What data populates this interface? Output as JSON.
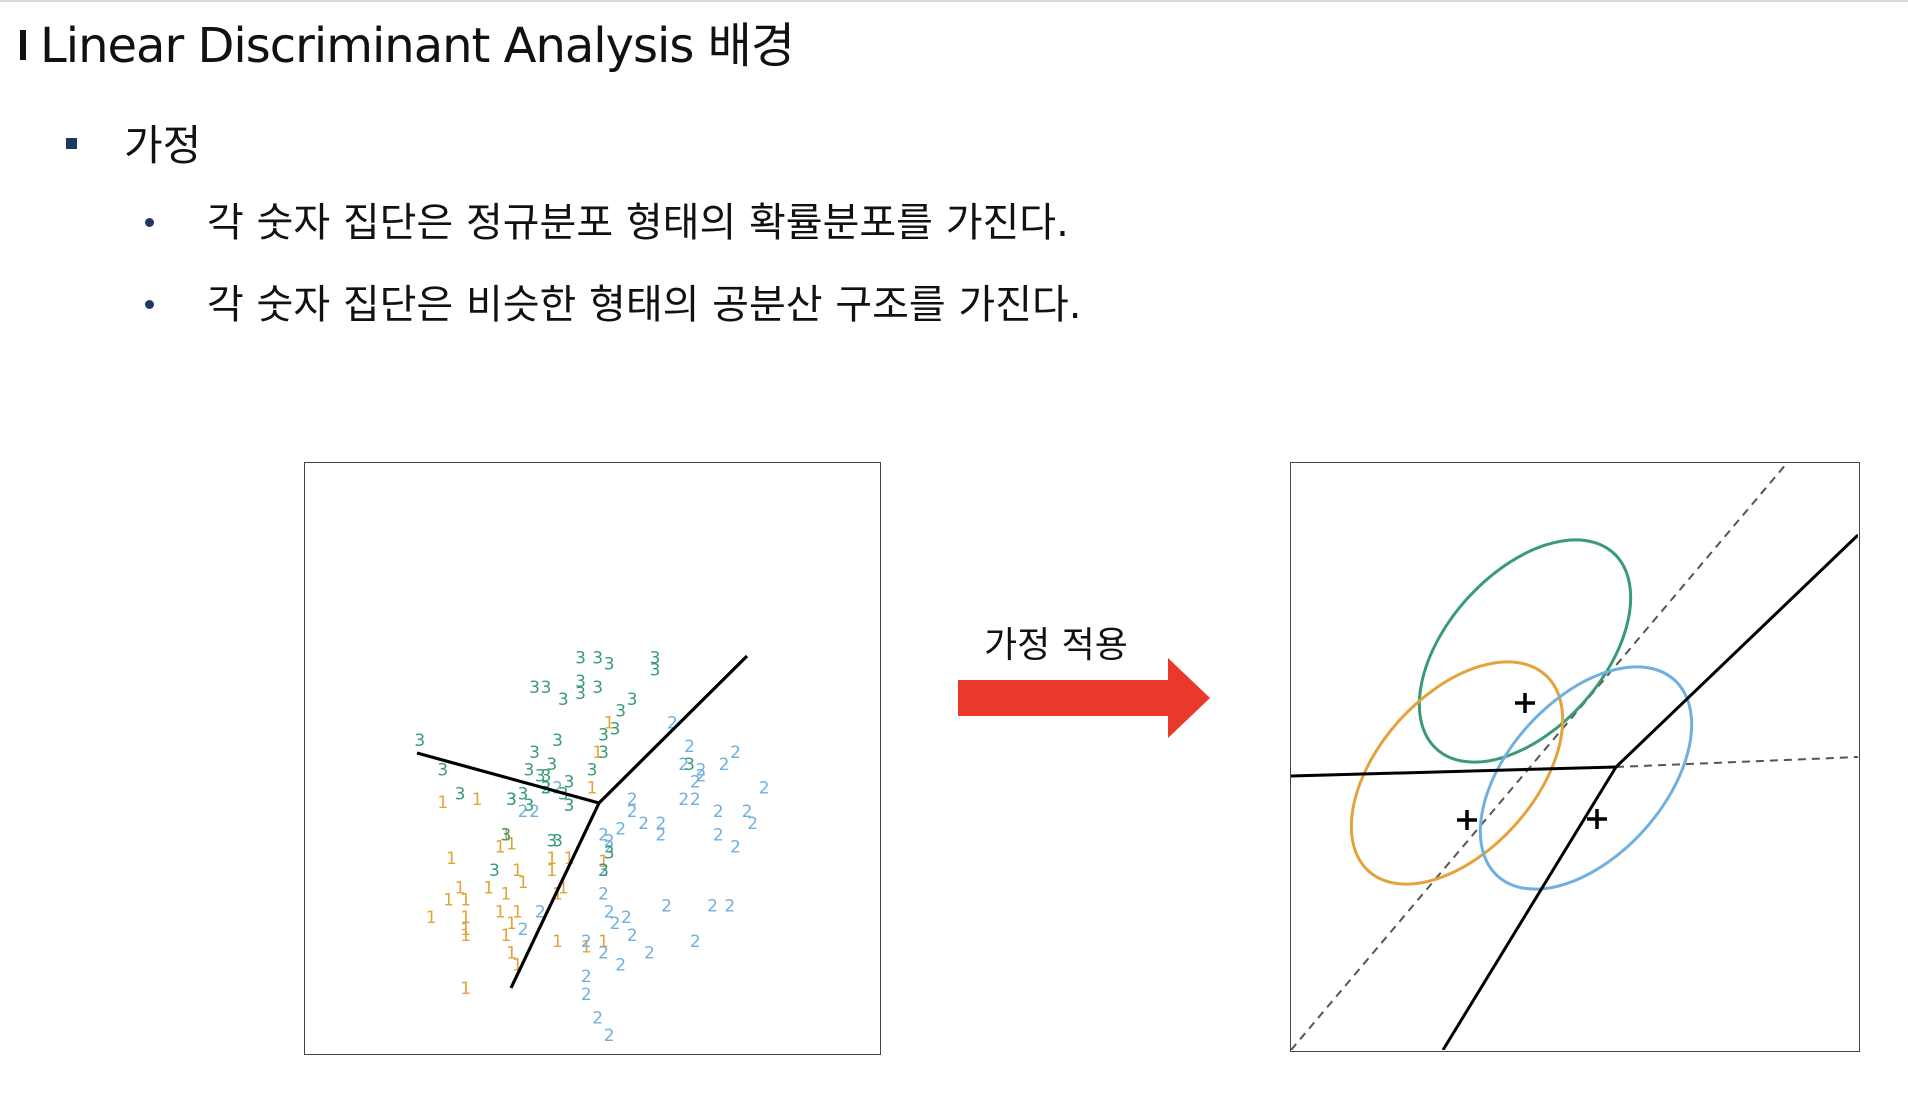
{
  "title": "Linear Discriminant Analysis 배경",
  "section": {
    "heading": "가정",
    "items": [
      "각 숫자 집단은 정규분포 형태의 확률분포를 가진다.",
      "각 숫자 집단은 비슷한 형태의 공분산 구조를 가진다."
    ]
  },
  "arrow": {
    "label": "가정 적용",
    "color": "#e8392b"
  },
  "left_figure": {
    "description_label_colors": {
      "1": "#e3a33a",
      "2": "#6fb0e0",
      "3": "#3a9b72"
    },
    "boundary_color": "#000000",
    "points": [
      {
        "c": "1",
        "x": 0.24,
        "y": 0.585
      },
      {
        "c": "1",
        "x": 0.3,
        "y": 0.58
      },
      {
        "c": "1",
        "x": 0.255,
        "y": 0.68
      },
      {
        "c": "1",
        "x": 0.34,
        "y": 0.66
      },
      {
        "c": "1",
        "x": 0.35,
        "y": 0.64
      },
      {
        "c": "1",
        "x": 0.36,
        "y": 0.655
      },
      {
        "c": "1",
        "x": 0.43,
        "y": 0.68
      },
      {
        "c": "1",
        "x": 0.46,
        "y": 0.68
      },
      {
        "c": "1",
        "x": 0.52,
        "y": 0.685
      },
      {
        "c": "1",
        "x": 0.43,
        "y": 0.7
      },
      {
        "c": "1",
        "x": 0.37,
        "y": 0.7
      },
      {
        "c": "1",
        "x": 0.38,
        "y": 0.72
      },
      {
        "c": "1",
        "x": 0.32,
        "y": 0.73
      },
      {
        "c": "1",
        "x": 0.35,
        "y": 0.74
      },
      {
        "c": "1",
        "x": 0.27,
        "y": 0.73
      },
      {
        "c": "1",
        "x": 0.25,
        "y": 0.75
      },
      {
        "c": "1",
        "x": 0.22,
        "y": 0.78
      },
      {
        "c": "1",
        "x": 0.34,
        "y": 0.77
      },
      {
        "c": "1",
        "x": 0.37,
        "y": 0.77
      },
      {
        "c": "1",
        "x": 0.36,
        "y": 0.79
      },
      {
        "c": "1",
        "x": 0.35,
        "y": 0.81
      },
      {
        "c": "1",
        "x": 0.36,
        "y": 0.84
      },
      {
        "c": "1",
        "x": 0.37,
        "y": 0.86
      },
      {
        "c": "1",
        "x": 0.45,
        "y": 0.73
      },
      {
        "c": "1",
        "x": 0.44,
        "y": 0.74
      },
      {
        "c": "1",
        "x": 0.44,
        "y": 0.82
      },
      {
        "c": "1",
        "x": 0.49,
        "y": 0.83
      },
      {
        "c": "1",
        "x": 0.28,
        "y": 0.8
      },
      {
        "c": "1",
        "x": 0.28,
        "y": 0.78
      },
      {
        "c": "1",
        "x": 0.53,
        "y": 0.45
      },
      {
        "c": "1",
        "x": 0.51,
        "y": 0.5
      },
      {
        "c": "1",
        "x": 0.5,
        "y": 0.56
      },
      {
        "c": "1",
        "x": 0.28,
        "y": 0.81
      },
      {
        "c": "1",
        "x": 0.28,
        "y": 0.75
      },
      {
        "c": "1",
        "x": 0.52,
        "y": 0.82
      },
      {
        "c": "1",
        "x": 0.28,
        "y": 0.9
      },
      {
        "c": "2",
        "x": 0.53,
        "y": 0.66
      },
      {
        "c": "2",
        "x": 0.57,
        "y": 0.58
      },
      {
        "c": "2",
        "x": 0.64,
        "y": 0.45
      },
      {
        "c": "2",
        "x": 0.67,
        "y": 0.49
      },
      {
        "c": "2",
        "x": 0.75,
        "y": 0.5
      },
      {
        "c": "2",
        "x": 0.73,
        "y": 0.52
      },
      {
        "c": "2",
        "x": 0.69,
        "y": 0.53
      },
      {
        "c": "2",
        "x": 0.69,
        "y": 0.54
      },
      {
        "c": "2",
        "x": 0.68,
        "y": 0.55
      },
      {
        "c": "2",
        "x": 0.66,
        "y": 0.58
      },
      {
        "c": "2",
        "x": 0.68,
        "y": 0.58
      },
      {
        "c": "2",
        "x": 0.72,
        "y": 0.6
      },
      {
        "c": "2",
        "x": 0.8,
        "y": 0.56
      },
      {
        "c": "2",
        "x": 0.77,
        "y": 0.6
      },
      {
        "c": "2",
        "x": 0.78,
        "y": 0.62
      },
      {
        "c": "2",
        "x": 0.72,
        "y": 0.64
      },
      {
        "c": "2",
        "x": 0.75,
        "y": 0.66
      },
      {
        "c": "2",
        "x": 0.57,
        "y": 0.6
      },
      {
        "c": "2",
        "x": 0.59,
        "y": 0.62
      },
      {
        "c": "2",
        "x": 0.62,
        "y": 0.62
      },
      {
        "c": "2",
        "x": 0.62,
        "y": 0.64
      },
      {
        "c": "2",
        "x": 0.55,
        "y": 0.63
      },
      {
        "c": "2",
        "x": 0.52,
        "y": 0.64
      },
      {
        "c": "2",
        "x": 0.53,
        "y": 0.65
      },
      {
        "c": "2",
        "x": 0.52,
        "y": 0.7
      },
      {
        "c": "2",
        "x": 0.52,
        "y": 0.74
      },
      {
        "c": "2",
        "x": 0.53,
        "y": 0.77
      },
      {
        "c": "2",
        "x": 0.56,
        "y": 0.78
      },
      {
        "c": "2",
        "x": 0.54,
        "y": 0.79
      },
      {
        "c": "2",
        "x": 0.57,
        "y": 0.81
      },
      {
        "c": "2",
        "x": 0.52,
        "y": 0.84
      },
      {
        "c": "2",
        "x": 0.55,
        "y": 0.86
      },
      {
        "c": "2",
        "x": 0.49,
        "y": 0.88
      },
      {
        "c": "2",
        "x": 0.49,
        "y": 0.82
      },
      {
        "c": "2",
        "x": 0.49,
        "y": 0.91
      },
      {
        "c": "2",
        "x": 0.51,
        "y": 0.95
      },
      {
        "c": "2",
        "x": 0.53,
        "y": 0.98
      },
      {
        "c": "2",
        "x": 0.6,
        "y": 0.84
      },
      {
        "c": "2",
        "x": 0.68,
        "y": 0.82
      },
      {
        "c": "2",
        "x": 0.63,
        "y": 0.76
      },
      {
        "c": "2",
        "x": 0.71,
        "y": 0.76
      },
      {
        "c": "2",
        "x": 0.74,
        "y": 0.76
      },
      {
        "c": "2",
        "x": 0.38,
        "y": 0.8
      },
      {
        "c": "2",
        "x": 0.52,
        "y": 0.7
      },
      {
        "c": "2",
        "x": 0.44,
        "y": 0.56
      },
      {
        "c": "2",
        "x": 0.42,
        "y": 0.56
      },
      {
        "c": "2",
        "x": 0.38,
        "y": 0.6
      },
      {
        "c": "2",
        "x": 0.4,
        "y": 0.6
      },
      {
        "c": "2",
        "x": 0.66,
        "y": 0.52
      },
      {
        "c": "2",
        "x": 0.41,
        "y": 0.77
      },
      {
        "c": "3",
        "x": 0.2,
        "y": 0.48
      },
      {
        "c": "3",
        "x": 0.24,
        "y": 0.53
      },
      {
        "c": "3",
        "x": 0.27,
        "y": 0.57
      },
      {
        "c": "3",
        "x": 0.36,
        "y": 0.58
      },
      {
        "c": "3",
        "x": 0.39,
        "y": 0.59
      },
      {
        "c": "3",
        "x": 0.39,
        "y": 0.53
      },
      {
        "c": "3",
        "x": 0.4,
        "y": 0.5
      },
      {
        "c": "3",
        "x": 0.41,
        "y": 0.54
      },
      {
        "c": "3",
        "x": 0.42,
        "y": 0.54
      },
      {
        "c": "3",
        "x": 0.42,
        "y": 0.56
      },
      {
        "c": "3",
        "x": 0.43,
        "y": 0.52
      },
      {
        "c": "3",
        "x": 0.45,
        "y": 0.57
      },
      {
        "c": "3",
        "x": 0.46,
        "y": 0.55
      },
      {
        "c": "3",
        "x": 0.46,
        "y": 0.59
      },
      {
        "c": "3",
        "x": 0.44,
        "y": 0.48
      },
      {
        "c": "3",
        "x": 0.4,
        "y": 0.39
      },
      {
        "c": "3",
        "x": 0.42,
        "y": 0.39
      },
      {
        "c": "3",
        "x": 0.45,
        "y": 0.41
      },
      {
        "c": "3",
        "x": 0.48,
        "y": 0.38
      },
      {
        "c": "3",
        "x": 0.48,
        "y": 0.4
      },
      {
        "c": "3",
        "x": 0.51,
        "y": 0.39
      },
      {
        "c": "3",
        "x": 0.48,
        "y": 0.34
      },
      {
        "c": "3",
        "x": 0.51,
        "y": 0.34
      },
      {
        "c": "3",
        "x": 0.53,
        "y": 0.35
      },
      {
        "c": "3",
        "x": 0.55,
        "y": 0.43
      },
      {
        "c": "3",
        "x": 0.54,
        "y": 0.46
      },
      {
        "c": "3",
        "x": 0.52,
        "y": 0.47
      },
      {
        "c": "3",
        "x": 0.52,
        "y": 0.5
      },
      {
        "c": "3",
        "x": 0.57,
        "y": 0.41
      },
      {
        "c": "3",
        "x": 0.61,
        "y": 0.34
      },
      {
        "c": "3",
        "x": 0.61,
        "y": 0.36
      },
      {
        "c": "3",
        "x": 0.67,
        "y": 0.52
      },
      {
        "c": "3",
        "x": 0.5,
        "y": 0.53
      },
      {
        "c": "3",
        "x": 0.44,
        "y": 0.65
      },
      {
        "c": "3",
        "x": 0.38,
        "y": 0.57
      },
      {
        "c": "3",
        "x": 0.35,
        "y": 0.64
      },
      {
        "c": "3",
        "x": 0.33,
        "y": 0.7
      },
      {
        "c": "3",
        "x": 0.52,
        "y": 0.7
      },
      {
        "c": "3",
        "x": 0.53,
        "y": 0.67
      },
      {
        "c": "3",
        "x": 0.36,
        "y": 0.58
      },
      {
        "c": "3",
        "x": 0.43,
        "y": 0.65
      }
    ]
  },
  "right_figure": {
    "ellipse_colors": [
      "#3a9b72",
      "#e3a33a",
      "#6fb0e0"
    ],
    "centroid_marker": "+"
  }
}
